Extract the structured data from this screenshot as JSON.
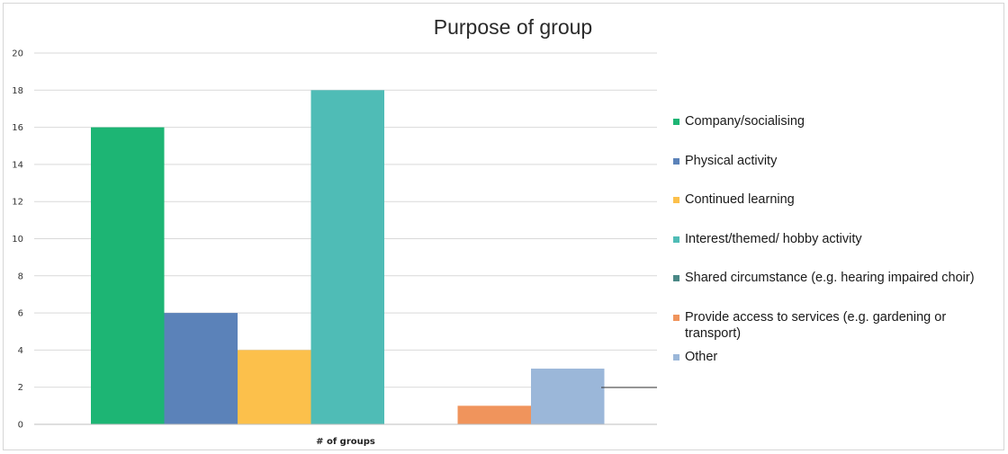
{
  "chart_data": {
    "type": "bar",
    "title": "Purpose of group",
    "categories": [
      "# of groups"
    ],
    "series": [
      {
        "name": "Company/socialising",
        "values": [
          16
        ],
        "color": "#1db574"
      },
      {
        "name": "Physical activity",
        "values": [
          6
        ],
        "color": "#5b82b9"
      },
      {
        "name": "Continued learning",
        "values": [
          4
        ],
        "color": "#fcc04b"
      },
      {
        "name": "Interest/themed/ hobby activity",
        "values": [
          18
        ],
        "color": "#4fbcb6"
      },
      {
        "name": "Shared circumstance (e.g. hearing impaired choir)",
        "values": [
          0
        ],
        "color": "#4a8886"
      },
      {
        "name": "Provide access to services (e.g. gardening or transport)",
        "values": [
          1
        ],
        "color": "#f0945c"
      },
      {
        "name": "Other",
        "values": [
          3
        ],
        "color": "#9bb7d9"
      }
    ],
    "ylim": [
      0,
      20
    ],
    "yticks": [
      "0",
      "2",
      "4",
      "6",
      "8",
      "10",
      "12",
      "14",
      "16",
      "18",
      "20"
    ],
    "xlabel": "",
    "ylabel": "",
    "grid": true,
    "legend_position": "right"
  }
}
